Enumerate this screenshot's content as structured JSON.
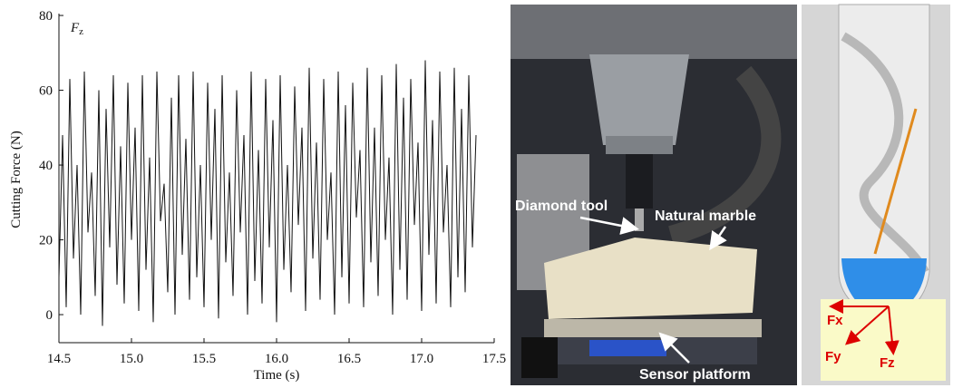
{
  "chart_data": {
    "type": "line",
    "annotation": "F",
    "annotation_subscript": "z",
    "xlabel": "Time (s)",
    "ylabel": "Cutting Force (N)",
    "color": "#111111",
    "x": [
      14.5,
      14.525,
      14.55,
      14.575,
      14.6,
      14.625,
      14.65,
      14.675,
      14.7,
      14.725,
      14.75,
      14.775,
      14.8,
      14.825,
      14.85,
      14.875,
      14.9,
      14.925,
      14.95,
      14.975,
      15.0,
      15.025,
      15.05,
      15.075,
      15.1,
      15.125,
      15.15,
      15.175,
      15.2,
      15.225,
      15.25,
      15.275,
      15.3,
      15.325,
      15.35,
      15.375,
      15.4,
      15.425,
      15.45,
      15.475,
      15.5,
      15.525,
      15.55,
      15.575,
      15.6,
      15.625,
      15.65,
      15.675,
      15.7,
      15.725,
      15.75,
      15.775,
      15.8,
      15.825,
      15.85,
      15.875,
      15.9,
      15.925,
      15.95,
      15.975,
      16.0,
      16.025,
      16.05,
      16.075,
      16.1,
      16.125,
      16.15,
      16.175,
      16.2,
      16.225,
      16.25,
      16.275,
      16.3,
      16.325,
      16.35,
      16.375,
      16.4,
      16.425,
      16.45,
      16.475,
      16.5,
      16.525,
      16.55,
      16.575,
      16.6,
      16.625,
      16.65,
      16.675,
      16.7,
      16.725,
      16.75,
      16.775,
      16.8,
      16.825,
      16.85,
      16.875,
      16.9,
      16.925,
      16.95,
      16.975,
      17.0,
      17.025,
      17.05,
      17.075,
      17.1,
      17.125,
      17.15,
      17.175,
      17.2,
      17.225,
      17.25,
      17.275,
      17.3,
      17.325,
      17.35,
      17.375
    ],
    "values": [
      10,
      48,
      2,
      63,
      15,
      40,
      0,
      65,
      22,
      38,
      5,
      60,
      -3,
      55,
      18,
      64,
      8,
      45,
      3,
      62,
      20,
      50,
      1,
      64,
      12,
      42,
      -2,
      65,
      25,
      35,
      6,
      58,
      0,
      64,
      16,
      47,
      4,
      65,
      10,
      40,
      2,
      62,
      20,
      55,
      -1,
      64,
      14,
      38,
      5,
      60,
      22,
      48,
      0,
      65,
      9,
      44,
      3,
      63,
      18,
      52,
      -2,
      64,
      12,
      40,
      6,
      61,
      24,
      50,
      1,
      66,
      15,
      46,
      4,
      63,
      20,
      38,
      0,
      65,
      10,
      56,
      3,
      62,
      26,
      44,
      2,
      66,
      14,
      50,
      5,
      64,
      20,
      42,
      0,
      67,
      12,
      58,
      4,
      63,
      24,
      46,
      1,
      68,
      16,
      52,
      3,
      65,
      22,
      40,
      2,
      66,
      10,
      55,
      6,
      64,
      18,
      48
    ],
    "xlim": [
      14.5,
      17.5
    ],
    "ylim": [
      -7.5,
      80.5
    ],
    "xticks": [
      14.5,
      {
        "value": 15,
        "label": "15.0"
      },
      15.5,
      {
        "value": 16,
        "label": "16.0"
      },
      16.5,
      {
        "value": 17,
        "label": "17.0"
      },
      17.5
    ],
    "yticks": [
      0,
      20,
      40,
      60,
      80
    ]
  },
  "photos": [
    {
      "labels": [
        "Diamond tool",
        "Natural marble",
        "Sensor platform"
      ]
    },
    {
      "labels": [
        "Fx",
        "Fy",
        "Fz"
      ]
    }
  ]
}
